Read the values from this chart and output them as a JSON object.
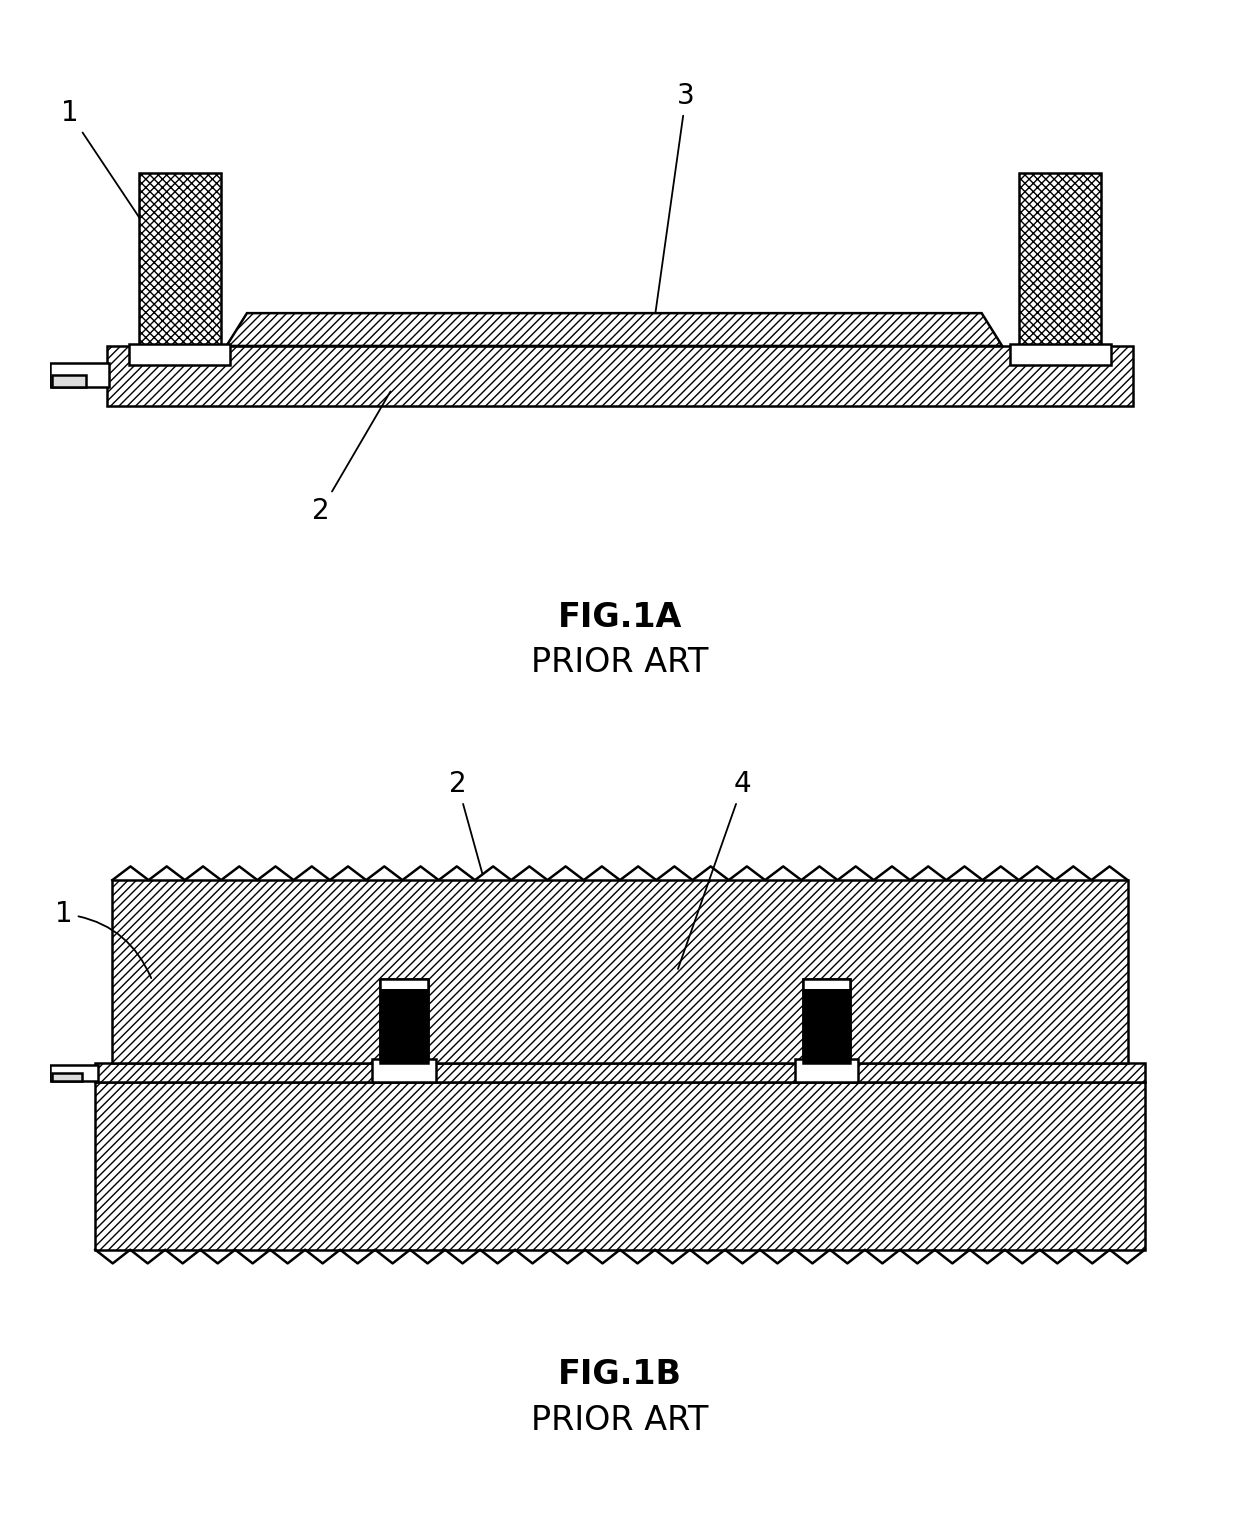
{
  "fig_width": 12.4,
  "fig_height": 15.24,
  "bg_color": "#ffffff",
  "line_color": "#000000",
  "fig1a_label": "FIG.1A",
  "fig1b_label": "FIG.1B",
  "prior_art": "PRIOR ART",
  "label_fontsize": 24,
  "annotation_fontsize": 20
}
